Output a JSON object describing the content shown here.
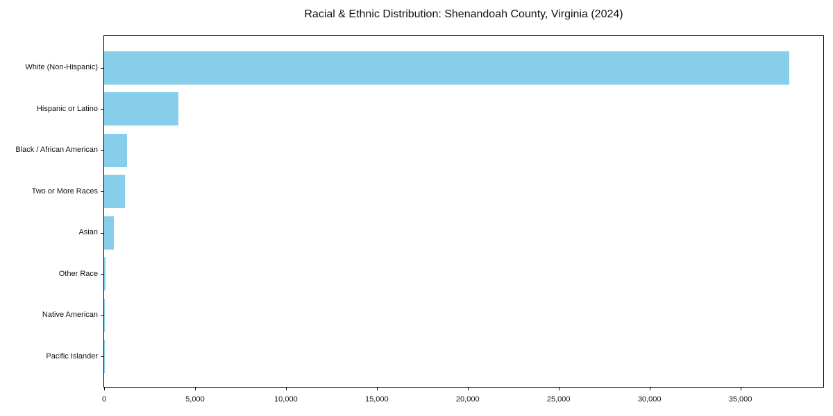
{
  "figure": {
    "background_color": "#ffffff",
    "frame_color": "#000000",
    "text_color": "#111111"
  },
  "chart_data": {
    "type": "bar",
    "orientation": "horizontal",
    "title": "Racial & Ethnic Distribution: Shenandoah County, Virginia (2024)",
    "xlabel": "",
    "ylabel": "",
    "categories": [
      "White (Non-Hispanic)",
      "Hispanic or Latino",
      "Black / African American",
      "Two or More Races",
      "Asian",
      "Other Race",
      "Native American",
      "Pacific Islander"
    ],
    "values": [
      37700,
      4080,
      1270,
      1160,
      520,
      80,
      35,
      12
    ],
    "bar_color": "#87CEEB",
    "xlim": [
      0,
      39560
    ],
    "x_ticks": [
      0,
      5000,
      10000,
      15000,
      20000,
      25000,
      30000,
      35000
    ],
    "x_tick_labels": [
      "0",
      "5,000",
      "10,000",
      "15,000",
      "20,000",
      "25,000",
      "30,000",
      "35,000"
    ],
    "grid": false,
    "legend": null
  }
}
